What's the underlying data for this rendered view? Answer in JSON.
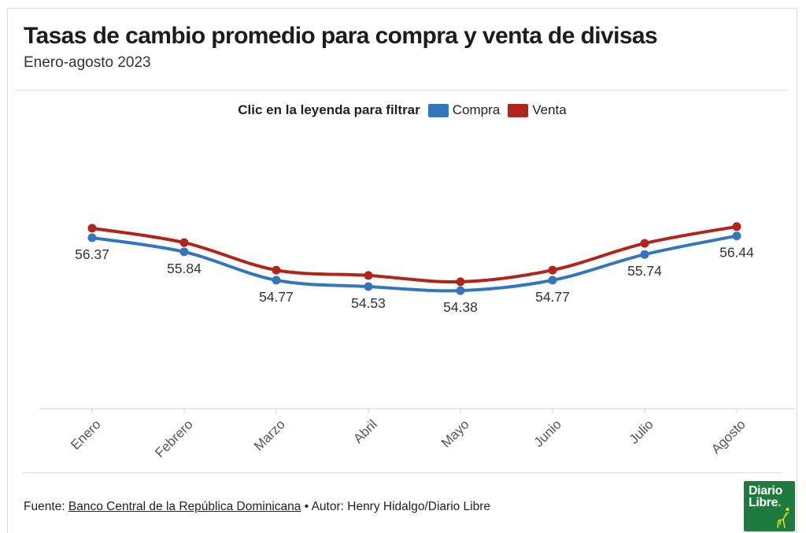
{
  "header": {
    "title": "Tasas de cambio promedio para compra y venta de divisas",
    "subtitle": "Enero-agosto 2023"
  },
  "legend": {
    "hint": "Clic en la leyenda para filtrar",
    "items": [
      {
        "label": "Compra",
        "color": "#3276bd"
      },
      {
        "label": "Venta",
        "color": "#b0241a"
      }
    ]
  },
  "chart_data": {
    "type": "line",
    "title": "Tasas de cambio promedio para compra y venta de divisas",
    "subtitle": "Enero-agosto 2023",
    "categories": [
      "Enero",
      "Febrero",
      "Marzo",
      "Abril",
      "Mayo",
      "Junio",
      "Julio",
      "Agosto"
    ],
    "series": [
      {
        "name": "Compra",
        "color": "#3276bd",
        "values": [
          56.37,
          55.84,
          54.77,
          54.53,
          54.38,
          54.77,
          55.74,
          56.44
        ],
        "point_labels_visible": true
      },
      {
        "name": "Venta",
        "color": "#b0241a",
        "values": [
          56.73,
          56.19,
          55.15,
          54.95,
          54.71,
          55.15,
          56.16,
          56.79
        ],
        "point_labels_visible": false,
        "values_estimated_from_pixels": true
      }
    ],
    "xlabel": "",
    "ylabel": "",
    "ylim": [
      54.0,
      57.2
    ],
    "grid": false,
    "legend_position": "top",
    "marker": "circle",
    "axis_color": "#cccccc",
    "tick_label_color": "#555555",
    "point_label_color": "#333333"
  },
  "footer": {
    "source_prefix": "Fuente: ",
    "source_link": "Banco Central de la República Dominicana",
    "after_link": " • Autor: Henry Hidalgo/Diario Libre",
    "logo": {
      "line1": "Diario",
      "line2": "Libre",
      "dot": ".",
      "bg": "#1e7b3d",
      "giraffe_color": "#d6dd26"
    }
  }
}
